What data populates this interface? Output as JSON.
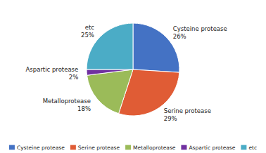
{
  "chart_data": {
    "type": "pie",
    "categories": [
      "Cysteine protease",
      "Serine protease",
      "Metalloprotease",
      "Aspartic protease",
      "etc"
    ],
    "values": [
      26,
      29,
      18,
      2,
      25
    ],
    "value_labels": [
      "26%",
      "29%",
      "18%",
      "2%",
      "25%"
    ],
    "colors": [
      "#4472c4",
      "#e05c35",
      "#9bbb59",
      "#7030a0",
      "#4bacc6"
    ],
    "data_labels": true,
    "legend": "bottom"
  }
}
